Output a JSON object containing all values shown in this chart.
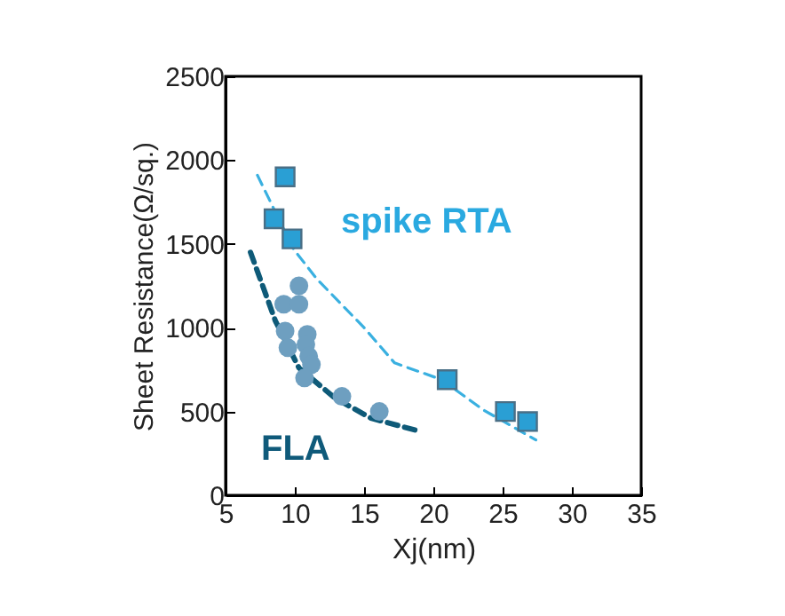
{
  "chart_data": {
    "type": "scatter",
    "xlabel": "Xj(nm)",
    "ylabel": "Sheet Resistance(Ω/sq.)",
    "xlim": [
      5,
      35
    ],
    "xticks": [
      5,
      10,
      15,
      20,
      25,
      30,
      35
    ],
    "ylim": [
      0,
      2500
    ],
    "yticks": [
      0,
      500,
      1000,
      1500,
      2000,
      2500
    ],
    "grid": false,
    "series": [
      {
        "type": "line",
        "color": "#3ab0e0",
        "line_style": "dashed",
        "marker": "none",
        "x": [
          7.3,
          9.9,
          11.6,
          15.0,
          17.2,
          20.6,
          23.6,
          27.4
        ],
        "values": [
          1910,
          1470,
          1290,
          1000,
          790,
          690,
          510,
          330
        ]
      },
      {
        "type": "line",
        "color": "#0e5a78",
        "line_style": "dashed",
        "marker": "none",
        "x": [
          6.8,
          8.6,
          10.3,
          12.9,
          15.5,
          19.1
        ],
        "values": [
          1450,
          1040,
          760,
          580,
          460,
          380
        ]
      },
      {
        "color": "#6e9fc0",
        "marker": "circle",
        "x": [
          10.3,
          9.2,
          10.3,
          9.3,
          10.9,
          9.5,
          10.8,
          11.0,
          11.2,
          10.7,
          13.4,
          16.1
        ],
        "values": [
          1250,
          1140,
          1140,
          980,
          960,
          880,
          900,
          830,
          780,
          700,
          590,
          500
        ]
      },
      {
        "color": "#2a9fd4",
        "marker": "square",
        "x": [
          9.3,
          8.5,
          9.8,
          21.0,
          25.2,
          26.8
        ],
        "values": [
          1900,
          1650,
          1530,
          690,
          500,
          440
        ]
      }
    ],
    "annotations": [
      "spike RTA",
      "FLA"
    ]
  }
}
